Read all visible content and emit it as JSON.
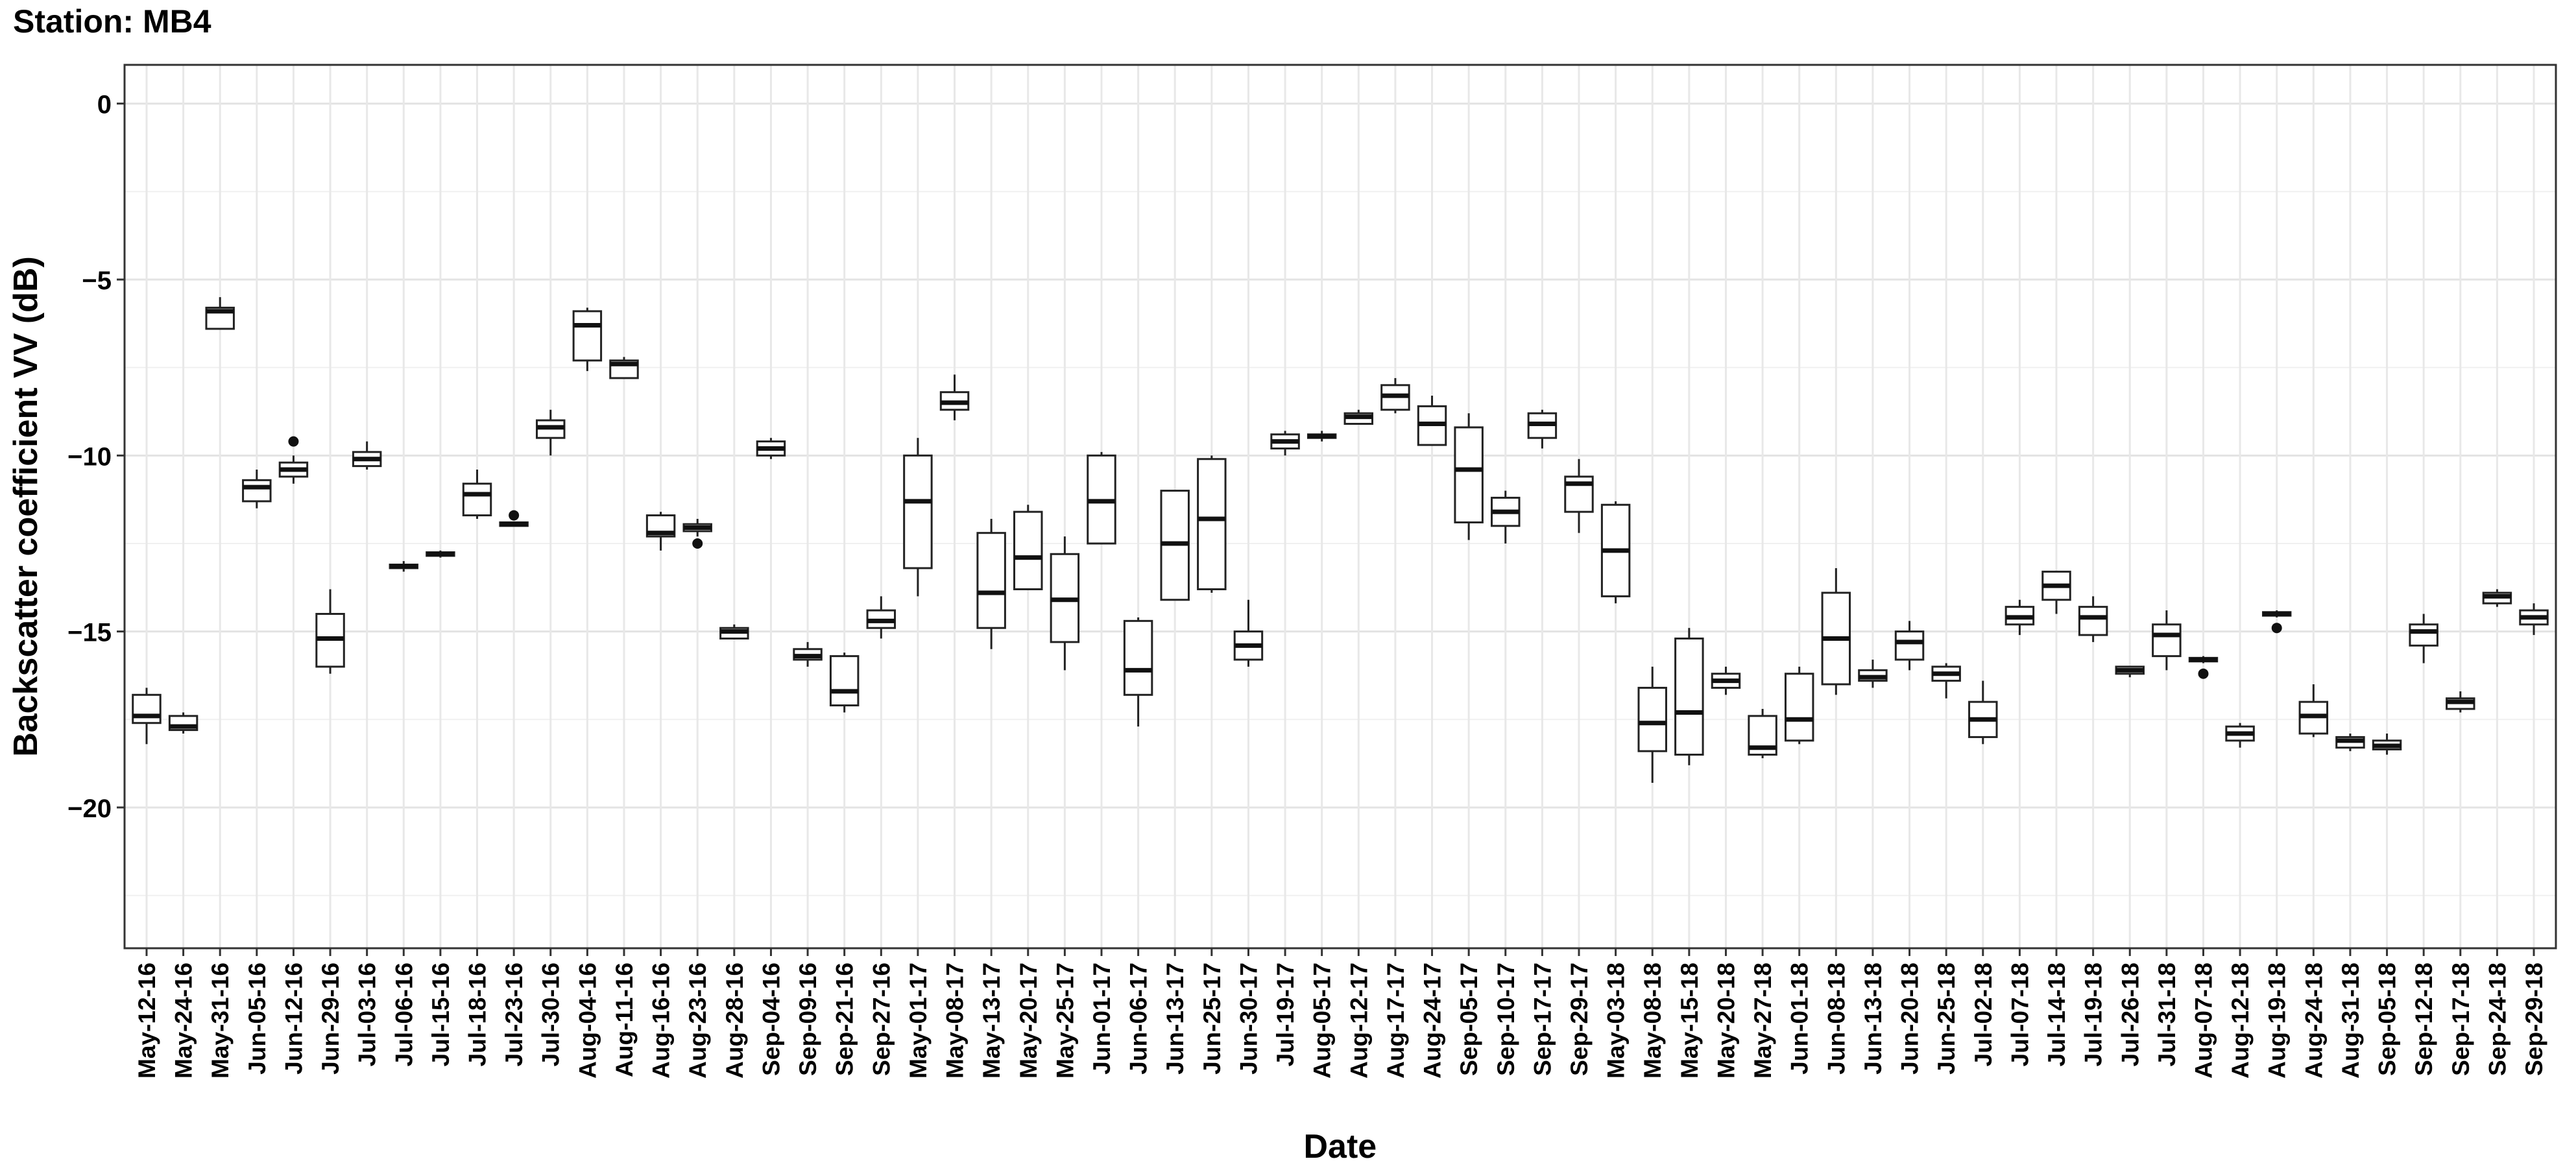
{
  "chart_data": {
    "type": "boxplot",
    "title": "Station: MB4",
    "xlabel": "Date",
    "ylabel": "Backscatter coefficient VV (dB)",
    "ylim": [
      -24,
      1.1
    ],
    "yticks": [
      0,
      -5,
      -10,
      -15,
      -20
    ],
    "ytick_labels": [
      "0",
      "−5",
      "−10",
      "−15",
      "−20"
    ],
    "grid": true,
    "categories": [
      "May-12-16",
      "May-24-16",
      "May-31-16",
      "Jun-05-16",
      "Jun-12-16",
      "Jun-29-16",
      "Jul-03-16",
      "Jul-06-16",
      "Jul-15-16",
      "Jul-18-16",
      "Jul-23-16",
      "Jul-30-16",
      "Aug-04-16",
      "Aug-11-16",
      "Aug-16-16",
      "Aug-23-16",
      "Aug-28-16",
      "Sep-04-16",
      "Sep-09-16",
      "Sep-21-16",
      "Sep-27-16",
      "May-01-17",
      "May-08-17",
      "May-13-17",
      "May-20-17",
      "May-25-17",
      "Jun-01-17",
      "Jun-06-17",
      "Jun-13-17",
      "Jun-25-17",
      "Jun-30-17",
      "Jul-19-17",
      "Aug-05-17",
      "Aug-12-17",
      "Aug-17-17",
      "Aug-24-17",
      "Sep-05-17",
      "Sep-10-17",
      "Sep-17-17",
      "Sep-29-17",
      "May-03-18",
      "May-08-18",
      "May-15-18",
      "May-20-18",
      "May-27-18",
      "Jun-01-18",
      "Jun-08-18",
      "Jun-13-18",
      "Jun-20-18",
      "Jun-25-18",
      "Jul-02-18",
      "Jul-07-18",
      "Jul-14-18",
      "Jul-19-18",
      "Jul-26-18",
      "Jul-31-18",
      "Aug-07-18",
      "Aug-12-18",
      "Aug-19-18",
      "Aug-24-18",
      "Aug-31-18",
      "Sep-05-18",
      "Sep-12-18",
      "Sep-17-18",
      "Sep-24-18",
      "Sep-29-18"
    ],
    "boxes": [
      {
        "min": -18.2,
        "q1": -17.6,
        "median": -17.4,
        "q3": -16.8,
        "max": -16.6,
        "outliers": []
      },
      {
        "min": -17.9,
        "q1": -17.8,
        "median": -17.7,
        "q3": -17.4,
        "max": -17.3,
        "outliers": []
      },
      {
        "min": -6.4,
        "q1": -6.4,
        "median": -5.9,
        "q3": -5.8,
        "max": -5.5,
        "outliers": []
      },
      {
        "min": -11.5,
        "q1": -11.3,
        "median": -10.9,
        "q3": -10.7,
        "max": -10.4,
        "outliers": []
      },
      {
        "min": -10.8,
        "q1": -10.6,
        "median": -10.4,
        "q3": -10.2,
        "max": -10.0,
        "outliers": [
          -9.6
        ]
      },
      {
        "min": -16.2,
        "q1": -16.0,
        "median": -15.2,
        "q3": -14.5,
        "max": -13.8,
        "outliers": []
      },
      {
        "min": -10.4,
        "q1": -10.3,
        "median": -10.1,
        "q3": -9.9,
        "max": -9.6,
        "outliers": []
      },
      {
        "min": -13.3,
        "q1": -13.2,
        "median": -13.15,
        "q3": -13.1,
        "max": -13.0,
        "outliers": []
      },
      {
        "min": -12.9,
        "q1": -12.85,
        "median": -12.8,
        "q3": -12.75,
        "max": -12.7,
        "outliers": []
      },
      {
        "min": -11.8,
        "q1": -11.7,
        "median": -11.1,
        "q3": -10.8,
        "max": -10.4,
        "outliers": []
      },
      {
        "min": -12.0,
        "q1": -12.0,
        "median": -11.95,
        "q3": -11.9,
        "max": -11.9,
        "outliers": [
          -11.7
        ]
      },
      {
        "min": -10.0,
        "q1": -9.5,
        "median": -9.2,
        "q3": -9.0,
        "max": -8.7,
        "outliers": []
      },
      {
        "min": -7.6,
        "q1": -7.3,
        "median": -6.3,
        "q3": -5.9,
        "max": -5.8,
        "outliers": []
      },
      {
        "min": -7.8,
        "q1": -7.8,
        "median": -7.4,
        "q3": -7.3,
        "max": -7.2,
        "outliers": []
      },
      {
        "min": -12.7,
        "q1": -12.3,
        "median": -12.2,
        "q3": -11.7,
        "max": -11.6,
        "outliers": []
      },
      {
        "min": -12.3,
        "q1": -12.15,
        "median": -12.05,
        "q3": -11.95,
        "max": -11.8,
        "outliers": [
          -12.5
        ]
      },
      {
        "min": -15.2,
        "q1": -15.2,
        "median": -15.0,
        "q3": -14.9,
        "max": -14.8,
        "outliers": []
      },
      {
        "min": -10.1,
        "q1": -10.0,
        "median": -9.8,
        "q3": -9.6,
        "max": -9.5,
        "outliers": []
      },
      {
        "min": -16.0,
        "q1": -15.8,
        "median": -15.7,
        "q3": -15.5,
        "max": -15.3,
        "outliers": []
      },
      {
        "min": -17.3,
        "q1": -17.1,
        "median": -16.7,
        "q3": -15.7,
        "max": -15.6,
        "outliers": []
      },
      {
        "min": -15.2,
        "q1": -14.9,
        "median": -14.7,
        "q3": -14.4,
        "max": -14.0,
        "outliers": []
      },
      {
        "min": -14.0,
        "q1": -13.2,
        "median": -11.3,
        "q3": -10.0,
        "max": -9.5,
        "outliers": []
      },
      {
        "min": -9.0,
        "q1": -8.7,
        "median": -8.5,
        "q3": -8.2,
        "max": -7.7,
        "outliers": []
      },
      {
        "min": -15.5,
        "q1": -14.9,
        "median": -13.9,
        "q3": -12.2,
        "max": -11.8,
        "outliers": []
      },
      {
        "min": -13.8,
        "q1": -13.8,
        "median": -12.9,
        "q3": -11.6,
        "max": -11.4,
        "outliers": []
      },
      {
        "min": -16.1,
        "q1": -15.3,
        "median": -14.1,
        "q3": -12.8,
        "max": -12.3,
        "outliers": []
      },
      {
        "min": -12.5,
        "q1": -12.5,
        "median": -11.3,
        "q3": -10.0,
        "max": -9.9,
        "outliers": []
      },
      {
        "min": -17.7,
        "q1": -16.8,
        "median": -16.1,
        "q3": -14.7,
        "max": -14.6,
        "outliers": []
      },
      {
        "min": -14.1,
        "q1": -14.1,
        "median": -12.5,
        "q3": -11.0,
        "max": -11.0,
        "outliers": []
      },
      {
        "min": -13.9,
        "q1": -13.8,
        "median": -11.8,
        "q3": -10.1,
        "max": -10.0,
        "outliers": []
      },
      {
        "min": -16.0,
        "q1": -15.8,
        "median": -15.4,
        "q3": -15.0,
        "max": -14.1,
        "outliers": []
      },
      {
        "min": -10.0,
        "q1": -9.8,
        "median": -9.6,
        "q3": -9.4,
        "max": -9.3,
        "outliers": []
      },
      {
        "min": -9.6,
        "q1": -9.5,
        "median": -9.45,
        "q3": -9.4,
        "max": -9.3,
        "outliers": []
      },
      {
        "min": -9.1,
        "q1": -9.1,
        "median": -8.9,
        "q3": -8.8,
        "max": -8.7,
        "outliers": []
      },
      {
        "min": -8.8,
        "q1": -8.7,
        "median": -8.3,
        "q3": -8.0,
        "max": -7.8,
        "outliers": []
      },
      {
        "min": -9.7,
        "q1": -9.7,
        "median": -9.1,
        "q3": -8.6,
        "max": -8.3,
        "outliers": []
      },
      {
        "min": -12.4,
        "q1": -11.9,
        "median": -10.4,
        "q3": -9.2,
        "max": -8.8,
        "outliers": []
      },
      {
        "min": -12.5,
        "q1": -12.0,
        "median": -11.6,
        "q3": -11.2,
        "max": -11.0,
        "outliers": []
      },
      {
        "min": -9.8,
        "q1": -9.5,
        "median": -9.1,
        "q3": -8.8,
        "max": -8.7,
        "outliers": []
      },
      {
        "min": -12.2,
        "q1": -11.6,
        "median": -10.8,
        "q3": -10.6,
        "max": -10.1,
        "outliers": []
      },
      {
        "min": -14.2,
        "q1": -14.0,
        "median": -12.7,
        "q3": -11.4,
        "max": -11.3,
        "outliers": []
      },
      {
        "min": -19.3,
        "q1": -18.4,
        "median": -17.6,
        "q3": -16.6,
        "max": -16.0,
        "outliers": []
      },
      {
        "min": -18.8,
        "q1": -18.5,
        "median": -17.3,
        "q3": -15.2,
        "max": -14.9,
        "outliers": []
      },
      {
        "min": -16.8,
        "q1": -16.6,
        "median": -16.4,
        "q3": -16.2,
        "max": -16.0,
        "outliers": []
      },
      {
        "min": -18.6,
        "q1": -18.5,
        "median": -18.3,
        "q3": -17.4,
        "max": -17.2,
        "outliers": []
      },
      {
        "min": -18.2,
        "q1": -18.1,
        "median": -17.5,
        "q3": -16.2,
        "max": -16.0,
        "outliers": []
      },
      {
        "min": -16.8,
        "q1": -16.5,
        "median": -15.2,
        "q3": -13.9,
        "max": -13.2,
        "outliers": []
      },
      {
        "min": -16.6,
        "q1": -16.4,
        "median": -16.3,
        "q3": -16.1,
        "max": -15.8,
        "outliers": []
      },
      {
        "min": -16.1,
        "q1": -15.8,
        "median": -15.3,
        "q3": -15.0,
        "max": -14.7,
        "outliers": []
      },
      {
        "min": -16.9,
        "q1": -16.4,
        "median": -16.2,
        "q3": -16.0,
        "max": -15.9,
        "outliers": []
      },
      {
        "min": -18.2,
        "q1": -18.0,
        "median": -17.5,
        "q3": -17.0,
        "max": -16.4,
        "outliers": []
      },
      {
        "min": -15.1,
        "q1": -14.8,
        "median": -14.6,
        "q3": -14.3,
        "max": -14.1,
        "outliers": []
      },
      {
        "min": -14.5,
        "q1": -14.1,
        "median": -13.7,
        "q3": -13.3,
        "max": -13.3,
        "outliers": []
      },
      {
        "min": -15.3,
        "q1": -15.1,
        "median": -14.6,
        "q3": -14.3,
        "max": -14.0,
        "outliers": []
      },
      {
        "min": -16.3,
        "q1": -16.2,
        "median": -16.1,
        "q3": -16.0,
        "max": -16.0,
        "outliers": []
      },
      {
        "min": -16.1,
        "q1": -15.7,
        "median": -15.1,
        "q3": -14.8,
        "max": -14.4,
        "outliers": []
      },
      {
        "min": -15.9,
        "q1": -15.85,
        "median": -15.8,
        "q3": -15.75,
        "max": -15.7,
        "outliers": [
          -16.2
        ]
      },
      {
        "min": -18.3,
        "q1": -18.1,
        "median": -17.9,
        "q3": -17.7,
        "max": -17.6,
        "outliers": []
      },
      {
        "min": -14.6,
        "q1": -14.55,
        "median": -14.5,
        "q3": -14.45,
        "max": -14.4,
        "outliers": [
          -14.9
        ]
      },
      {
        "min": -18.0,
        "q1": -17.9,
        "median": -17.4,
        "q3": -17.0,
        "max": -16.5,
        "outliers": []
      },
      {
        "min": -18.4,
        "q1": -18.3,
        "median": -18.1,
        "q3": -18.0,
        "max": -17.9,
        "outliers": []
      },
      {
        "min": -18.5,
        "q1": -18.35,
        "median": -18.25,
        "q3": -18.1,
        "max": -17.9,
        "outliers": []
      },
      {
        "min": -15.9,
        "q1": -15.4,
        "median": -15.0,
        "q3": -14.8,
        "max": -14.5,
        "outliers": []
      },
      {
        "min": -17.3,
        "q1": -17.2,
        "median": -17.0,
        "q3": -16.9,
        "max": -16.7,
        "outliers": []
      },
      {
        "min": -14.3,
        "q1": -14.2,
        "median": -14.0,
        "q3": -13.9,
        "max": -13.8,
        "outliers": []
      },
      {
        "min": -15.1,
        "q1": -14.8,
        "median": -14.6,
        "q3": -14.4,
        "max": -14.2,
        "outliers": []
      }
    ]
  }
}
